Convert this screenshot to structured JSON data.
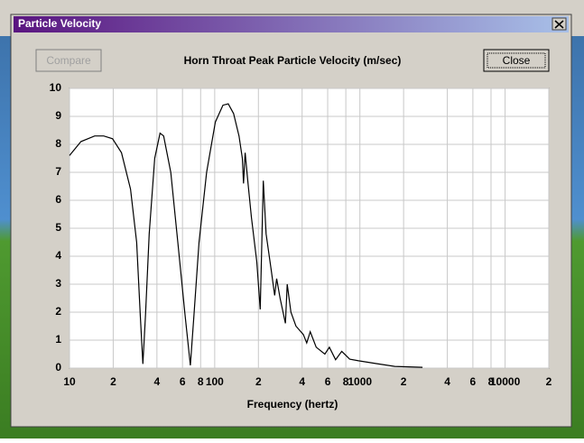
{
  "window": {
    "title": "Particle Velocity",
    "buttons": {
      "compare": "Compare",
      "close": "Close"
    }
  },
  "chart_data": {
    "type": "line",
    "title": "Horn Throat Peak Particle Velocity (m/sec)",
    "xlabel": "Frequency (hertz)",
    "x_scale": "log",
    "grid": true,
    "color": "#000000",
    "xlim": [
      10,
      20000
    ],
    "ylim": [
      0,
      10
    ],
    "xticks": [
      10,
      {
        "value": 20,
        "label": "2"
      },
      {
        "value": 40,
        "label": "4"
      },
      {
        "value": 60,
        "label": "6"
      },
      {
        "value": 80,
        "label": "8"
      },
      100,
      {
        "value": 200,
        "label": "2"
      },
      {
        "value": 400,
        "label": "4"
      },
      {
        "value": 600,
        "label": "6"
      },
      {
        "value": 800,
        "label": "8"
      },
      1000,
      {
        "value": 2000,
        "label": "2"
      },
      {
        "value": 4000,
        "label": "4"
      },
      {
        "value": 6000,
        "label": "6"
      },
      {
        "value": 8000,
        "label": "8"
      },
      10000,
      {
        "value": 20000,
        "label": "2"
      }
    ],
    "yticks": [
      0,
      1,
      2,
      3,
      4,
      5,
      6,
      7,
      8,
      9,
      10
    ],
    "x": [
      10,
      12,
      14.9,
      17.2,
      19.8,
      22.8,
      26.3,
      29,
      30.7,
      32,
      33.4,
      35.4,
      38.6,
      42,
      44.5,
      49.8,
      55.7,
      62.5,
      68,
      72,
      78,
      88,
      101,
      114,
      124,
      135,
      147,
      155,
      158,
      162,
      169,
      179,
      195,
      206,
      216,
      226,
      245,
      259,
      267,
      282,
      307,
      316,
      335,
      363,
      408,
      430,
      455,
      500,
      574,
      616,
      680,
      750,
      850,
      980,
      1300,
      1740,
      2700
    ],
    "values": [
      7.6,
      8.1,
      8.3,
      8.3,
      8.2,
      7.7,
      6.4,
      4.5,
      1.9,
      0.15,
      1.9,
      4.8,
      7.5,
      8.4,
      8.3,
      7.0,
      4.5,
      1.9,
      0.1,
      1.9,
      4.5,
      7.0,
      8.8,
      9.4,
      9.45,
      9.1,
      8.3,
      7.5,
      6.6,
      7.7,
      6.7,
      5.4,
      3.8,
      2.1,
      6.7,
      4.8,
      3.5,
      2.6,
      3.2,
      2.5,
      1.6,
      3.0,
      2.0,
      1.5,
      1.2,
      0.9,
      1.3,
      0.75,
      0.5,
      0.75,
      0.3,
      0.6,
      0.32,
      0.26,
      0.16,
      0.06,
      0.03
    ]
  }
}
